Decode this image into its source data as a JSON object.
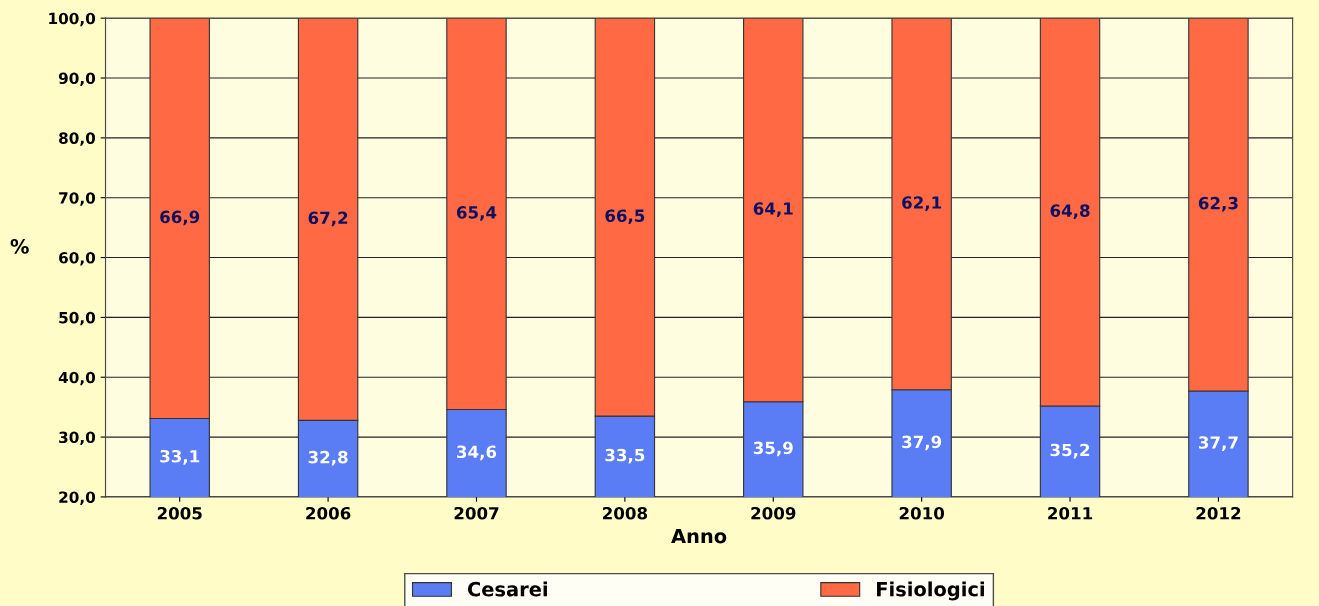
{
  "chart_data": {
    "type": "bar",
    "stacked": true,
    "xlabel": "Anno",
    "ylabel": "%",
    "categories": [
      "2005",
      "2006",
      "2007",
      "2008",
      "2009",
      "2010",
      "2011",
      "2012"
    ],
    "series": [
      {
        "name": "Cesarei",
        "color": "#5a7cf5",
        "values": [
          33.1,
          32.8,
          34.6,
          33.5,
          35.9,
          37.9,
          35.2,
          37.7
        ],
        "value_labels": [
          "33,1",
          "32,8",
          "34,6",
          "33,5",
          "35,9",
          "37,9",
          "35,2",
          "37,7"
        ]
      },
      {
        "name": "Fisiologici",
        "color": "#ff6a45",
        "values": [
          66.9,
          67.2,
          65.4,
          66.5,
          64.1,
          62.1,
          64.8,
          62.3
        ],
        "value_labels": [
          "66,9",
          "67,2",
          "65,4",
          "66,5",
          "64,1",
          "62,1",
          "64,8",
          "62,3"
        ]
      }
    ],
    "ylim": [
      20,
      100
    ],
    "yticks": [
      {
        "value": 20,
        "label": "20,0"
      },
      {
        "value": 30,
        "label": "30,0"
      },
      {
        "value": 40,
        "label": "40,0"
      },
      {
        "value": 50,
        "label": "50,0"
      },
      {
        "value": 60,
        "label": "60,0"
      },
      {
        "value": 70,
        "label": "70,0"
      },
      {
        "value": 80,
        "label": "80,0"
      },
      {
        "value": 90,
        "label": "90,0"
      },
      {
        "value": 100,
        "label": "100,0"
      }
    ],
    "grid": "y",
    "legend": "bottom"
  }
}
